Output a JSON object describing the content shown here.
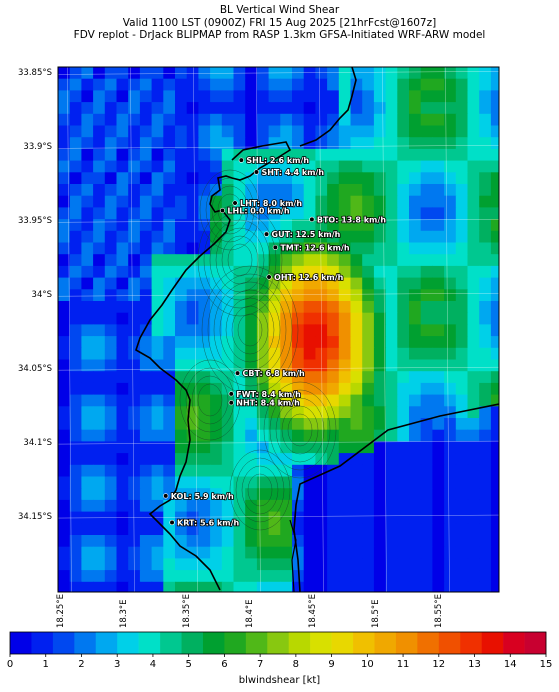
{
  "title": {
    "line1": "BL Vertical Wind Shear",
    "line2": "Valid 1100 LST (0900Z) FRI 15 Aug 2025 [21hrFcst@1607z]",
    "line3": "FDV replot - DrJack BLIPMAP from RASP 1.3km GFSA-Initiated WRF-ARW model"
  },
  "map": {
    "lat_ticks": [
      {
        "value": -33.85,
        "label": "33.85°S"
      },
      {
        "value": -33.9,
        "label": "33.9°S"
      },
      {
        "value": -33.95,
        "label": "33.95°S"
      },
      {
        "value": -34.0,
        "label": "34°S"
      },
      {
        "value": -34.05,
        "label": "34.05°S"
      },
      {
        "value": -34.1,
        "label": "34.1°S"
      },
      {
        "value": -34.15,
        "label": "34.15°S"
      }
    ],
    "lon_ticks": [
      {
        "value": 18.25,
        "label": "18.25°E"
      },
      {
        "value": 18.3,
        "label": "18.3°E"
      },
      {
        "value": 18.35,
        "label": "18.35°E"
      },
      {
        "value": 18.4,
        "label": "18.4°E"
      },
      {
        "value": 18.45,
        "label": "18.45°E"
      },
      {
        "value": 18.5,
        "label": "18.5°E"
      },
      {
        "value": 18.55,
        "label": "18.55°E"
      }
    ],
    "lon_range": [
      18.2425,
      18.5925
    ],
    "lat_range": [
      -34.2,
      -33.845
    ],
    "stations": [
      {
        "code": "SHL",
        "label": "SHL: 2.6 km/h",
        "lon": 18.388,
        "lat": -33.908,
        "value": 2.6
      },
      {
        "code": "SHT",
        "label": "SHT: 4.4 km/h",
        "lon": 18.4,
        "lat": -33.916,
        "value": 4.4
      },
      {
        "code": "LHT",
        "label": "LHT: 8.0 km/h",
        "lon": 18.383,
        "lat": -33.937,
        "value": 8.0
      },
      {
        "code": "LHL",
        "label": "LHL: 0.0 km/h",
        "lon": 18.373,
        "lat": -33.942,
        "value": 0.0
      },
      {
        "code": "BTO",
        "label": "BTO: 13.8 km/h",
        "lon": 18.444,
        "lat": -33.948,
        "value": 13.8
      },
      {
        "code": "GUT",
        "label": "GUT: 12.5 km/h",
        "lon": 18.408,
        "lat": -33.958,
        "value": 12.5
      },
      {
        "code": "TMT",
        "label": "TMT: 12.6 km/h",
        "lon": 18.415,
        "lat": -33.967,
        "value": 12.6
      },
      {
        "code": "OHT",
        "label": "OHT: 12.6 km/h",
        "lon": 18.41,
        "lat": -33.987,
        "value": 12.6
      },
      {
        "code": "CBT",
        "label": "CBT: 6.8 km/h",
        "lon": 18.385,
        "lat": -34.052,
        "value": 6.8
      },
      {
        "code": "FWT",
        "label": "FWT: 8.4 km/h",
        "lon": 18.38,
        "lat": -34.066,
        "value": 8.4
      },
      {
        "code": "NHT",
        "label": "NHT: 8.4 km/h",
        "lon": 18.38,
        "lat": -34.072,
        "value": 8.4
      },
      {
        "code": "KOL",
        "label": "KOL: 5.9 km/h",
        "lon": 18.328,
        "lat": -34.135,
        "value": 5.9
      },
      {
        "code": "KRT",
        "label": "KRT: 5.6 km/h",
        "lon": 18.333,
        "lat": -34.153,
        "value": 5.6
      }
    ]
  },
  "colorbar": {
    "label": "blwindshear [kt]",
    "min": 0,
    "max": 15,
    "ticks": [
      "0",
      "1",
      "2",
      "3",
      "4",
      "5",
      "6",
      "7",
      "8",
      "9",
      "10",
      "11",
      "12",
      "13",
      "14",
      "15"
    ],
    "colors": [
      "#0000e8",
      "#0020f0",
      "#0048f0",
      "#0078f0",
      "#00a8f0",
      "#00d0e8",
      "#00e0c8",
      "#00c890",
      "#00b060",
      "#00a030",
      "#20a820",
      "#50b818",
      "#88c810",
      "#b8d800",
      "#d8e000",
      "#e8d800",
      "#f0c000",
      "#f0a800",
      "#f09000",
      "#f07000",
      "#f05000",
      "#f03000",
      "#e81000",
      "#d80020",
      "#c80030"
    ]
  }
}
